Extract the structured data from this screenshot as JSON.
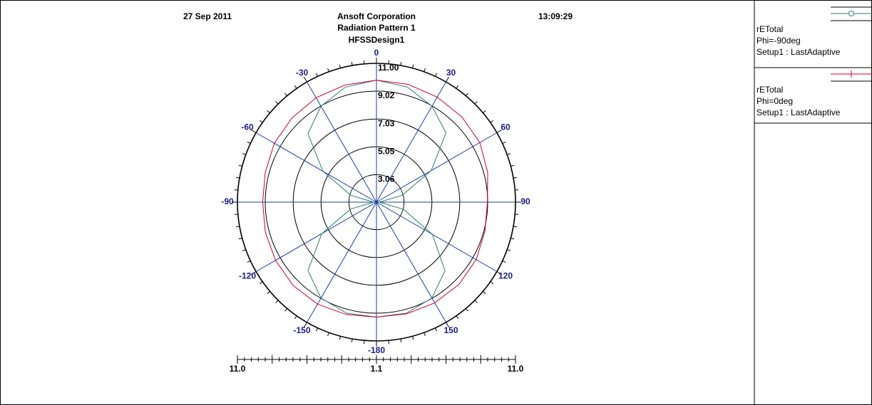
{
  "header": {
    "date": "27 Sep 2011",
    "company": "Ansoft Corporation",
    "time": "13:09:29",
    "design": "HFSSDesign1"
  },
  "chart_data": {
    "type": "polar",
    "title": "Radiation Pattern 1",
    "x": [
      -180,
      -165,
      -150,
      -135,
      -120,
      -105,
      -90,
      -75,
      -60,
      -45,
      -30,
      -15,
      0,
      15,
      30,
      45,
      60,
      75,
      90,
      105,
      120,
      135,
      150,
      165,
      180
    ],
    "series": [
      {
        "name": "rETotal",
        "legend_lines": [
          "Phi=-90deg",
          "Setup1 : LastAdaptive"
        ],
        "color": "#2e7d6e",
        "values": [
          9.3,
          9.3,
          9.0,
          8.0,
          5.6,
          3.0,
          1.3,
          3.0,
          5.5,
          8.0,
          9.0,
          9.6,
          9.8,
          9.6,
          9.0,
          8.1,
          5.6,
          3.0,
          1.3,
          3.1,
          5.7,
          8.0,
          9.0,
          9.3,
          9.3
        ]
      },
      {
        "name": "rETotal",
        "legend_lines": [
          "Phi=0deg",
          "Setup1 : LastAdaptive"
        ],
        "color": "#cc0033",
        "values": [
          9.3,
          9.4,
          9.5,
          9.5,
          9.4,
          9.3,
          9.2,
          9.3,
          9.5,
          9.6,
          9.7,
          9.75,
          9.8,
          9.8,
          9.75,
          9.7,
          9.6,
          9.3,
          9.0,
          9.1,
          9.3,
          9.4,
          9.4,
          9.35,
          9.3
        ]
      }
    ],
    "rlim": [
      1.1,
      11.0
    ],
    "rticks": [
      3.06,
      5.05,
      7.03,
      9.02,
      {
        "value": 11.0,
        "label": "11.00"
      }
    ],
    "theta_ticks": [
      0,
      30,
      60,
      90,
      120,
      150,
      -180,
      -150,
      -120,
      -90,
      -60,
      -30
    ],
    "scale_bar_labels": [
      "11.0",
      "1.1",
      "11.0"
    ]
  }
}
